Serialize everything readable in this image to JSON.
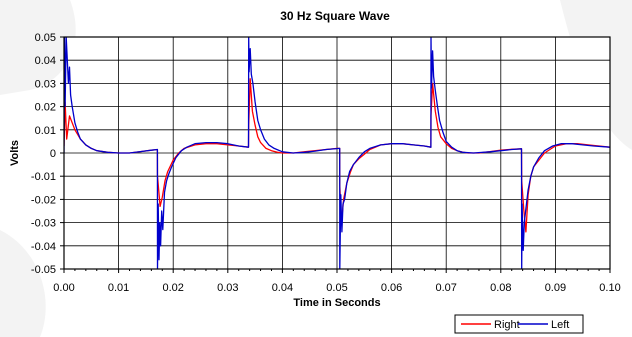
{
  "chart_data": {
    "type": "line",
    "title": "30 Hz Square Wave",
    "xlabel": "Time in Seconds",
    "ylabel": "Volts",
    "xlim": [
      0,
      0.1
    ],
    "ylim": [
      -0.05,
      0.05
    ],
    "grid": true,
    "legend_position": "bottom-right",
    "x_tick_labels": [
      "0.00",
      "0.01",
      "0.02",
      "0.03",
      "0.04",
      "0.05",
      "0.06",
      "0.07",
      "0.08",
      "0.09",
      "0.10"
    ],
    "y_tick_labels": [
      "0.05",
      "0.04",
      "0.03",
      "0.02",
      "0.01",
      "0",
      "-0.01",
      "-0.02",
      "-0.03",
      "-0.04",
      "-0.05"
    ],
    "series": [
      {
        "name": "Right",
        "color": "#ff0000",
        "x": [
          0.0,
          0.0002,
          0.0005,
          0.001,
          0.0015,
          0.002,
          0.003,
          0.004,
          0.005,
          0.006,
          0.008,
          0.01,
          0.012,
          0.014,
          0.016,
          0.0171,
          0.01712,
          0.0173,
          0.0176,
          0.018,
          0.0185,
          0.019,
          0.02,
          0.021,
          0.022,
          0.024,
          0.026,
          0.028,
          0.03,
          0.032,
          0.0338,
          0.03382,
          0.0341,
          0.0345,
          0.035,
          0.0355,
          0.036,
          0.037,
          0.038,
          0.039,
          0.04,
          0.042,
          0.044,
          0.046,
          0.048,
          0.05,
          0.0505,
          0.05052,
          0.0508,
          0.0512,
          0.0518,
          0.0525,
          0.053,
          0.054,
          0.055,
          0.056,
          0.058,
          0.06,
          0.062,
          0.064,
          0.066,
          0.0672,
          0.06722,
          0.0675,
          0.068,
          0.0685,
          0.069,
          0.07,
          0.071,
          0.072,
          0.073,
          0.074,
          0.076,
          0.078,
          0.08,
          0.082,
          0.0838,
          0.08382,
          0.0842,
          0.0846,
          0.085,
          0.0855,
          0.086,
          0.087,
          0.088,
          0.089,
          0.09,
          0.092,
          0.094,
          0.096,
          0.098,
          0.1
        ],
        "y": [
          0.003,
          0.022,
          0.006,
          0.016,
          0.013,
          0.01,
          0.006,
          0.0035,
          0.002,
          0.001,
          0.0003,
          0.0,
          0.0,
          0.0006,
          0.0012,
          0.0015,
          -0.01,
          -0.015,
          -0.023,
          -0.019,
          -0.012,
          -0.008,
          -0.003,
          0.0,
          0.002,
          0.0035,
          0.004,
          0.004,
          0.0035,
          0.003,
          0.0025,
          0.012,
          0.032,
          0.018,
          0.012,
          0.007,
          0.0045,
          0.002,
          0.001,
          0.0004,
          0.0,
          0.0,
          0.0005,
          0.001,
          0.0015,
          0.002,
          0.002,
          -0.014,
          -0.03,
          -0.02,
          -0.013,
          -0.008,
          -0.005,
          -0.0025,
          -0.0005,
          0.0015,
          0.0035,
          0.004,
          0.004,
          0.0035,
          0.003,
          0.0025,
          0.016,
          0.03,
          0.018,
          0.011,
          0.007,
          0.004,
          0.002,
          0.001,
          0.0004,
          0.0,
          0.0,
          0.0006,
          0.0012,
          0.0016,
          0.0018,
          -0.012,
          -0.024,
          -0.034,
          -0.018,
          -0.01,
          -0.006,
          -0.003,
          0.0,
          0.0015,
          0.003,
          0.004,
          0.004,
          0.0035,
          0.003,
          0.0025
        ]
      },
      {
        "name": "Left",
        "color": "#0000cc",
        "x": [
          0.0,
          0.0001,
          0.0002,
          0.0004,
          0.0006,
          0.0008,
          0.001,
          0.0012,
          0.0015,
          0.002,
          0.0025,
          0.003,
          0.004,
          0.005,
          0.006,
          0.008,
          0.01,
          0.012,
          0.014,
          0.016,
          0.0171,
          0.01712,
          0.01725,
          0.0174,
          0.01755,
          0.0177,
          0.0179,
          0.0181,
          0.0184,
          0.0188,
          0.0192,
          0.0197,
          0.0205,
          0.0215,
          0.0225,
          0.024,
          0.026,
          0.028,
          0.03,
          0.032,
          0.0338,
          0.03382,
          0.0339,
          0.0341,
          0.0343,
          0.0346,
          0.035,
          0.0355,
          0.036,
          0.0367,
          0.0375,
          0.0385,
          0.04,
          0.042,
          0.044,
          0.046,
          0.048,
          0.0505,
          0.05052,
          0.0507,
          0.0509,
          0.0511,
          0.0514,
          0.0518,
          0.0523,
          0.053,
          0.054,
          0.055,
          0.056,
          0.058,
          0.06,
          0.062,
          0.064,
          0.066,
          0.0672,
          0.06722,
          0.0673,
          0.0675,
          0.0677,
          0.068,
          0.0684,
          0.0688,
          0.0694,
          0.07,
          0.071,
          0.072,
          0.073,
          0.075,
          0.078,
          0.08,
          0.082,
          0.0838,
          0.08382,
          0.0839,
          0.0841,
          0.0843,
          0.0846,
          0.085,
          0.0855,
          0.086,
          0.087,
          0.088,
          0.0895,
          0.091,
          0.093,
          0.095,
          0.097,
          0.1
        ],
        "y": [
          0.0,
          0.05,
          0.02,
          0.05,
          0.04,
          0.03,
          0.037,
          0.025,
          0.02,
          0.013,
          0.009,
          0.006,
          0.0035,
          0.002,
          0.001,
          0.0003,
          0.0,
          0.0,
          0.0006,
          0.0012,
          0.0015,
          -0.05,
          -0.022,
          -0.046,
          -0.03,
          -0.04,
          -0.025,
          -0.033,
          -0.017,
          -0.012,
          -0.009,
          -0.006,
          -0.002,
          0.001,
          0.0025,
          0.004,
          0.0045,
          0.0045,
          0.004,
          0.003,
          0.0025,
          0.05,
          0.035,
          0.045,
          0.034,
          0.03,
          0.022,
          0.014,
          0.01,
          0.006,
          0.0035,
          0.002,
          0.0005,
          0.0,
          0.0003,
          0.0008,
          0.0015,
          0.002,
          -0.05,
          -0.018,
          -0.034,
          -0.022,
          -0.02,
          -0.013,
          -0.008,
          -0.005,
          -0.002,
          0.0005,
          0.002,
          0.0035,
          0.004,
          0.004,
          0.0035,
          0.003,
          0.0025,
          0.05,
          0.028,
          0.044,
          0.033,
          0.027,
          0.02,
          0.014,
          0.009,
          0.005,
          0.0025,
          0.001,
          0.0003,
          0.0,
          0.0005,
          0.001,
          0.0015,
          0.0018,
          -0.05,
          -0.022,
          -0.042,
          -0.03,
          -0.024,
          -0.016,
          -0.01,
          -0.006,
          -0.002,
          0.001,
          0.003,
          0.004,
          0.004,
          0.0035,
          0.003,
          0.0025
        ]
      }
    ]
  }
}
